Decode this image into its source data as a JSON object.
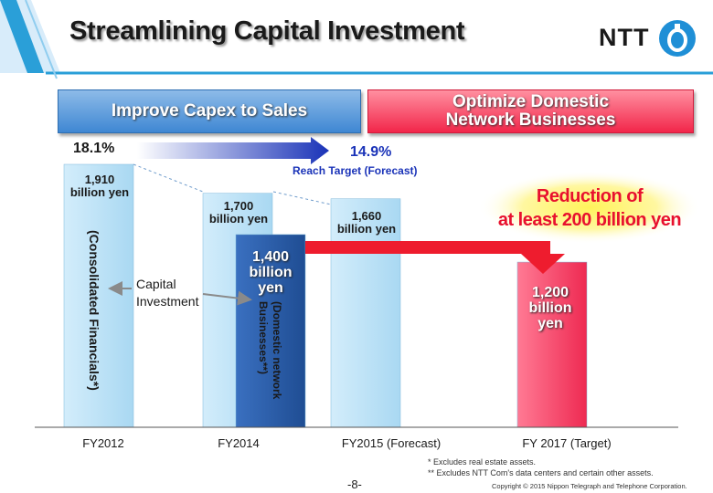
{
  "title": "Streamlining Capital Investment",
  "logo": "NTT",
  "header_left": "Improve Capex to Sales",
  "header_right": [
    "Optimize Domestic",
    "Network Businesses"
  ],
  "ratio_start": "18.1%",
  "ratio_end": "14.9%",
  "reach_target": "Reach Target (Forecast)",
  "reduction": [
    "Reduction of",
    "at least 200 billion yen"
  ],
  "capital_investment_label": [
    "Capital",
    "Investment"
  ],
  "notes": [
    "*   Excludes real estate assets.",
    "**  Excludes NTT Com's data centers and certain other assets."
  ],
  "page_number": "-8-",
  "copyright": "Copyright © 2015 Nippon Telegraph and Telephone Corporation.",
  "colors": {
    "consolidated": "#bfe4f7",
    "domestic": "#2e5ea8",
    "target": "#f5456a"
  },
  "chart_data": {
    "type": "bar",
    "categories": [
      "FY2012",
      "FY2014",
      "FY2015 (Forecast)",
      "FY 2017 (Target)"
    ],
    "series": [
      {
        "name": "(Consolidated Financials*)",
        "values": [
          1910,
          1700,
          1660,
          null
        ]
      },
      {
        "name": "(Domestic network Businesses**)",
        "values": [
          null,
          1400,
          null,
          1200
        ]
      }
    ],
    "value_labels": {
      "fy2012": [
        "1,910",
        "billion yen"
      ],
      "fy2014": [
        "1,700",
        "billion yen"
      ],
      "fy2015": [
        "1,660",
        "billion yen"
      ],
      "domestic2014": [
        "1,400",
        "billion",
        "yen"
      ],
      "fy2017": [
        "1,200",
        "billion",
        "yen"
      ]
    },
    "unit": "billion yen",
    "ylim": [
      0,
      2000
    ]
  }
}
